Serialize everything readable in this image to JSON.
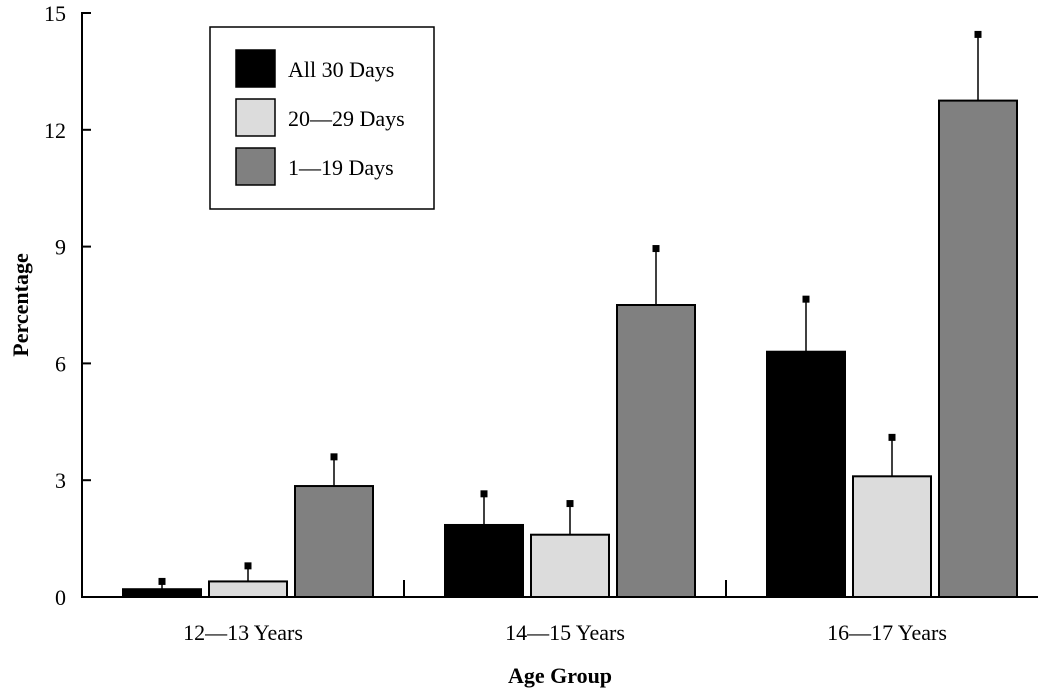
{
  "chart_data": {
    "type": "bar",
    "title": "",
    "xlabel": "Age Group",
    "ylabel": "Percentage",
    "ylim": [
      0,
      15
    ],
    "yticks": [
      0,
      3,
      6,
      9,
      12,
      15
    ],
    "categories": [
      "12—13 Years",
      "14—15 Years",
      "16—17 Years"
    ],
    "series": [
      {
        "name": "All 30 Days",
        "color": "#000000",
        "values": [
          0.2,
          1.85,
          6.3
        ],
        "error_upper": [
          0.4,
          2.65,
          7.65
        ]
      },
      {
        "name": "20—29 Days",
        "color": "#dcdcdc",
        "values": [
          0.4,
          1.6,
          3.1
        ],
        "error_upper": [
          0.8,
          2.4,
          4.1
        ]
      },
      {
        "name": "1—19 Days",
        "color": "#808080",
        "values": [
          2.85,
          7.5,
          12.75
        ],
        "error_upper": [
          3.6,
          8.95,
          14.45
        ]
      }
    ],
    "grid": false,
    "legend": "top-left"
  }
}
